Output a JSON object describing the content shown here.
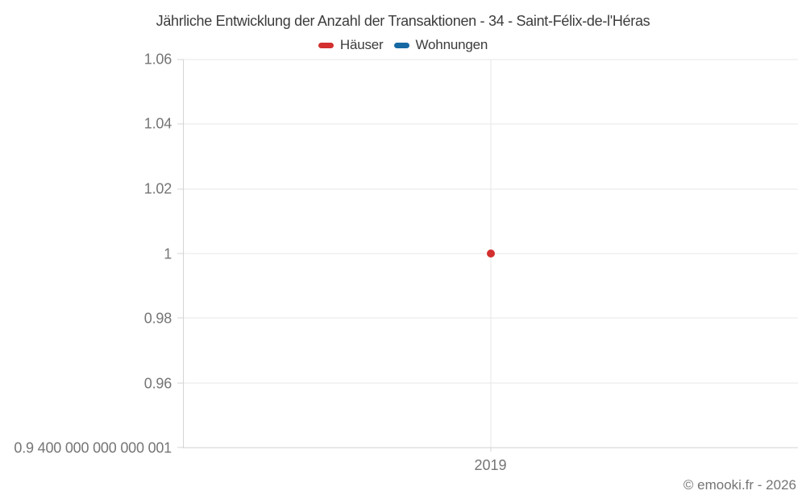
{
  "chart_data": {
    "type": "line",
    "title": "Jährliche Entwicklung der Anzahl der Transaktionen - 34 - Saint-Félix-de-l'Héras",
    "categories": [
      "2019"
    ],
    "series": [
      {
        "name": "Häuser",
        "color": "#d32f2f",
        "values": [
          1
        ]
      },
      {
        "name": "Wohnungen",
        "color": "#1669a2",
        "values": [
          null
        ]
      }
    ],
    "y_tick_labels": [
      "1.06",
      "1.04",
      "1.02",
      "1",
      "0.98",
      "0.96",
      "0.9 400 000 000 000 001"
    ],
    "ylim": [
      0.94,
      1.06
    ],
    "xlabel": "",
    "ylabel": "",
    "grid": true,
    "legend_position": "top",
    "point_radius_px": 5
  },
  "footer": {
    "attribution": "© emooki.fr - 2026"
  },
  "style_colors": {
    "grid": "#e7e7e7",
    "axis": "#d4d4d4",
    "tick_label": "#757575",
    "title": "#3c3c3c"
  }
}
